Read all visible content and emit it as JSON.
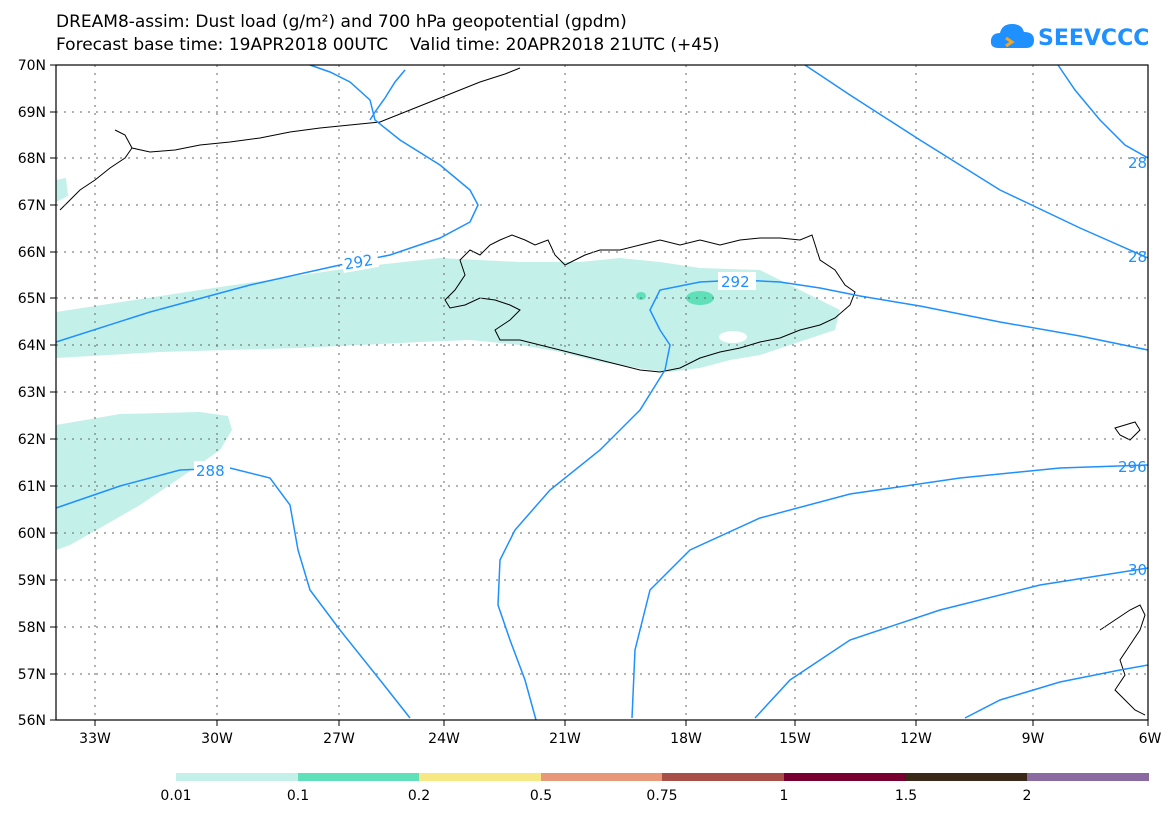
{
  "title": {
    "line1": "DREAM8-assim: Dust load (g/m²) and 700 hPa geopotential (gpdm)",
    "line2": "Forecast base time: 19APR2018 00UTC    Valid time: 20APR2018 21UTC (+45)"
  },
  "logo": {
    "text": "SEEVCCC",
    "icon": "cloud-icon"
  },
  "map": {
    "lat_labels": [
      "70N",
      "69N",
      "68N",
      "67N",
      "66N",
      "65N",
      "64N",
      "63N",
      "62N",
      "61N",
      "60N",
      "59N",
      "58N",
      "57N",
      "56N"
    ],
    "lon_labels": [
      "33W",
      "30W",
      "27W",
      "24W",
      "21W",
      "18W",
      "15W",
      "12W",
      "9W",
      "6W"
    ],
    "contour_labels": [
      "292",
      "292",
      "288",
      "28",
      "28",
      "296",
      "30"
    ]
  },
  "colorbar": {
    "colors": [
      "#c4f0ea",
      "#5fe0b8",
      "#f8e884",
      "#e89878",
      "#a85048",
      "#780030",
      "#3a2818",
      "#8a6aa0"
    ],
    "labels": [
      "0.01",
      "0.1",
      "0.2",
      "0.5",
      "0.75",
      "1",
      "1.5",
      "2"
    ]
  }
}
